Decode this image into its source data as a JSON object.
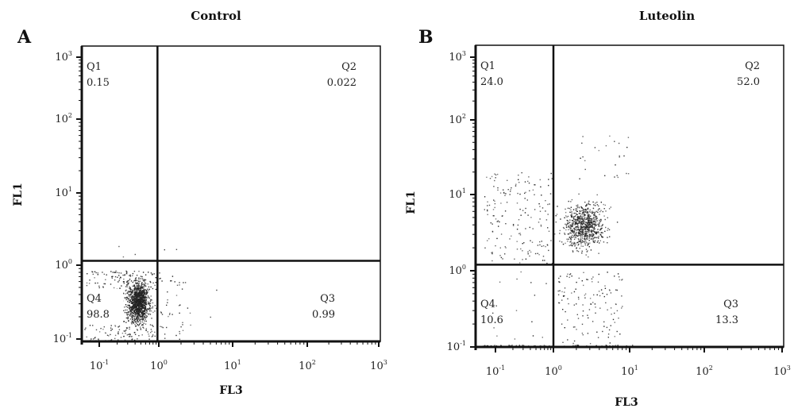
{
  "chart_data": [
    {
      "type": "scatter",
      "panel_label": "A",
      "title": "Control",
      "xlabel": "FL3",
      "ylabel": "FL1",
      "x_scale": "log",
      "y_scale": "log",
      "xlim": [
        0.06,
        1000
      ],
      "ylim": [
        0.1,
        1000
      ],
      "x_ticks": [
        {
          "base": "10",
          "exp": "-1"
        },
        {
          "base": "10",
          "exp": "0"
        },
        {
          "base": "10",
          "exp": "1"
        },
        {
          "base": "10",
          "exp": "2"
        },
        {
          "base": "10",
          "exp": "3"
        }
      ],
      "y_ticks": [
        {
          "base": "10",
          "exp": "-1"
        },
        {
          "base": "10",
          "exp": "0"
        },
        {
          "base": "10",
          "exp": "1"
        },
        {
          "base": "10",
          "exp": "2"
        },
        {
          "base": "10",
          "exp": "3"
        }
      ],
      "gate": {
        "x": 0.95,
        "y": 1.15
      },
      "quadrants": [
        {
          "name": "Q1",
          "value": "0.15"
        },
        {
          "name": "Q2",
          "value": "0.022"
        },
        {
          "name": "Q3",
          "value": "0.99"
        },
        {
          "name": "Q4",
          "value": "98.8"
        }
      ],
      "color": "#222222"
    },
    {
      "type": "scatter",
      "panel_label": "B",
      "title": "Luteolin",
      "xlabel": "FL3",
      "ylabel": "FL1",
      "x_scale": "log",
      "y_scale": "log",
      "xlim": [
        0.06,
        1000
      ],
      "ylim": [
        0.1,
        1000
      ],
      "x_ticks": [
        {
          "base": "10",
          "exp": "-1"
        },
        {
          "base": "10",
          "exp": "0"
        },
        {
          "base": "10",
          "exp": "1"
        },
        {
          "base": "10",
          "exp": "2"
        },
        {
          "base": "10",
          "exp": "3"
        }
      ],
      "y_ticks": [
        {
          "base": "10",
          "exp": "-1"
        },
        {
          "base": "10",
          "exp": "0"
        },
        {
          "base": "10",
          "exp": "1"
        },
        {
          "base": "10",
          "exp": "2"
        },
        {
          "base": "10",
          "exp": "3"
        }
      ],
      "gate": {
        "x": 1.0,
        "y": 1.2
      },
      "quadrants": [
        {
          "name": "Q1",
          "value": "24.0"
        },
        {
          "name": "Q2",
          "value": "52.0"
        },
        {
          "name": "Q3",
          "value": "13.3"
        },
        {
          "name": "Q4",
          "value": "10.6"
        }
      ],
      "color": "#222222"
    }
  ]
}
